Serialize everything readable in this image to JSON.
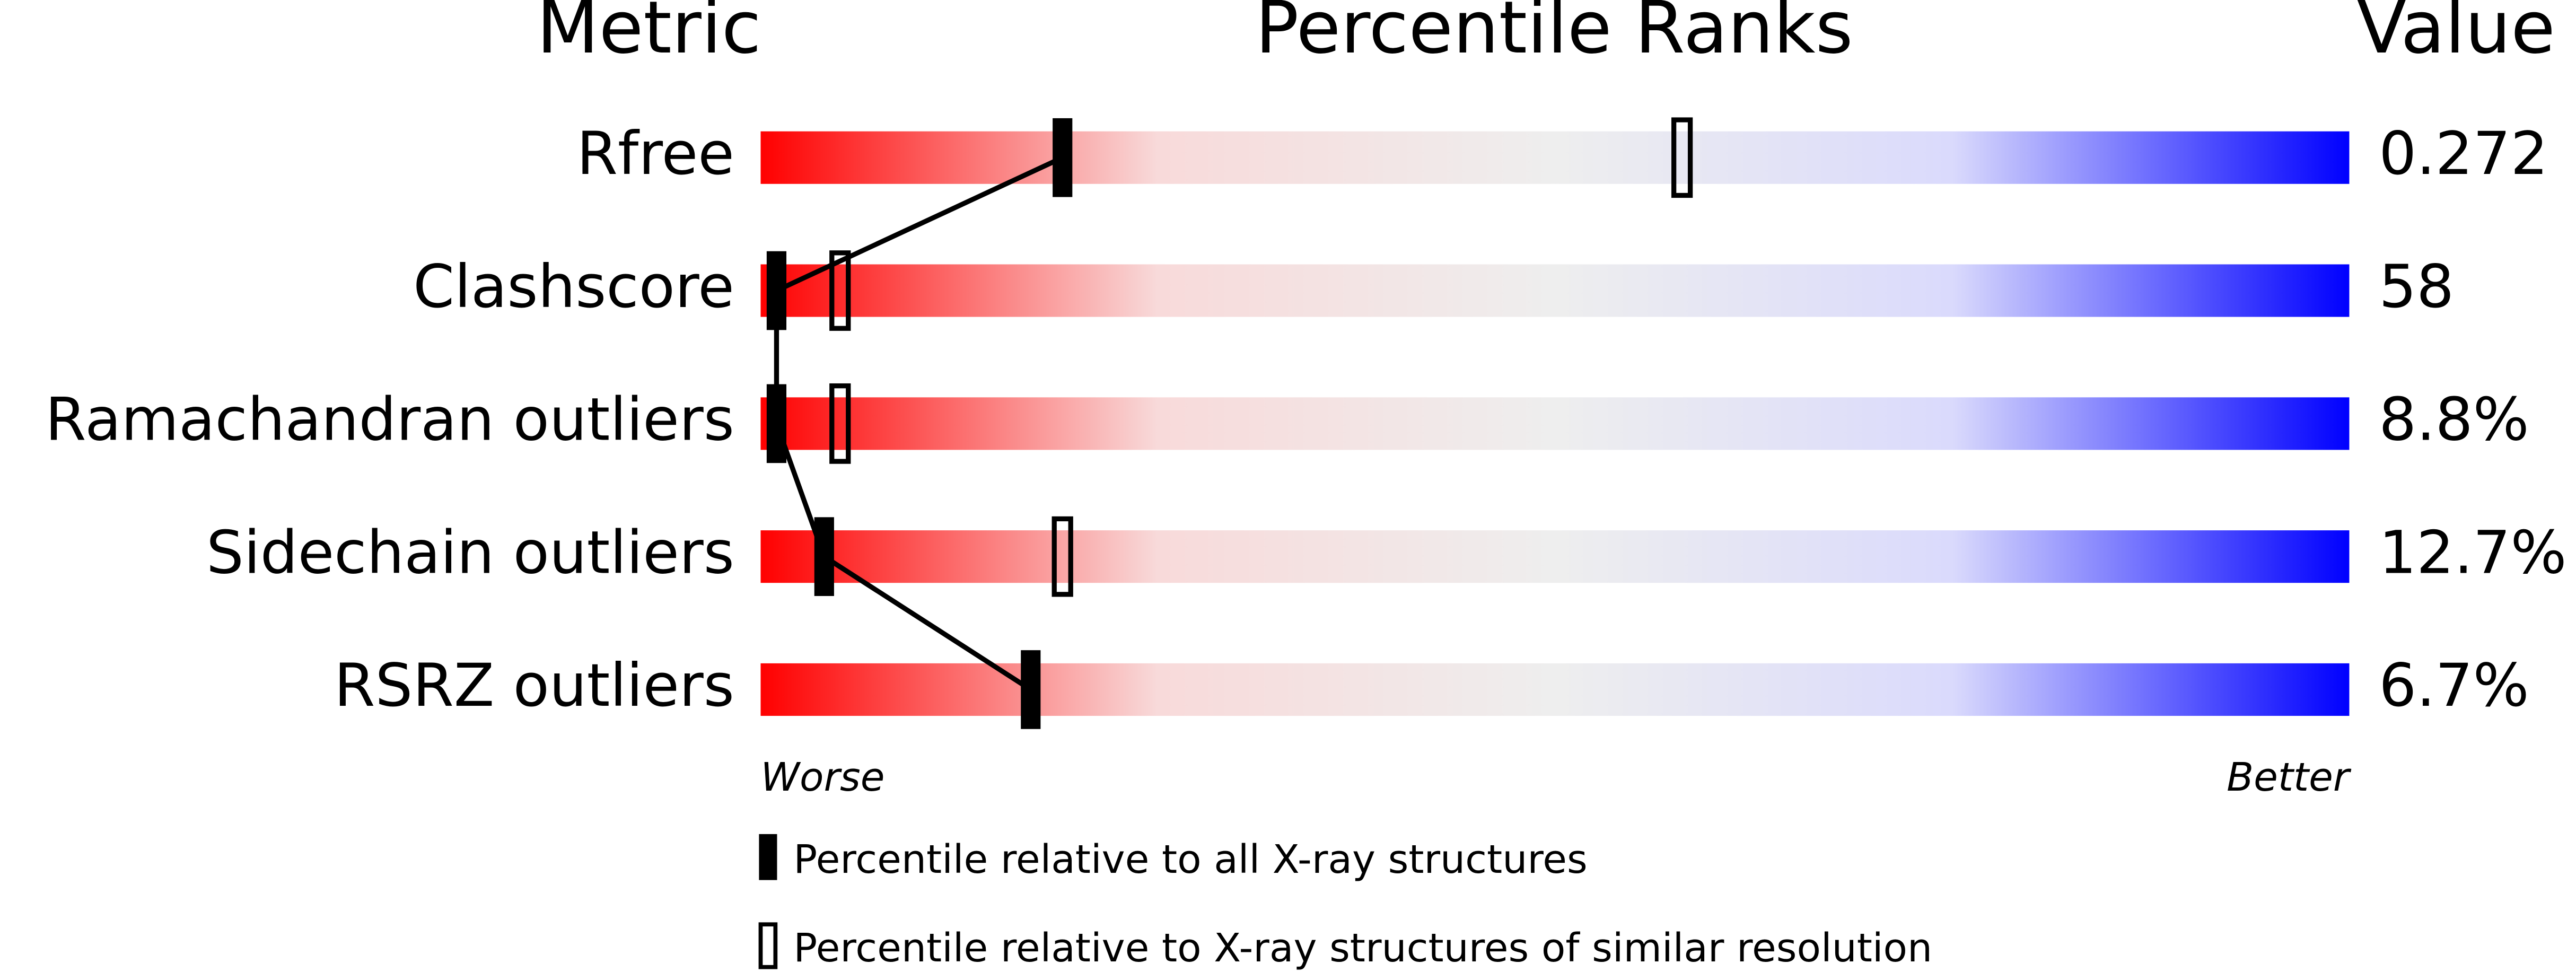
{
  "chart_data": {
    "type": "percentile",
    "columns": [
      "Metric",
      "Percentile Ranks",
      "Value"
    ],
    "categories": [
      "Rfree",
      "Clashscore",
      "Ramachandran outliers",
      "Sidechain outliers",
      "RSRZ outliers"
    ],
    "value_texts": [
      "0.272",
      "58",
      "8.8%",
      "12.7%",
      "6.7%"
    ],
    "xlim": [
      0,
      100
    ],
    "axis_labels": [
      "Worse",
      "Better"
    ],
    "colors": [
      "#ff0000",
      "#f8dada",
      "#eeeeee",
      "#dadafc",
      "#0000ff"
    ],
    "series": [
      {
        "name": "Percentile relative to all X-ray structures",
        "color": "#000000",
        "fill": "solid",
        "values": [
          19,
          1,
          1,
          4,
          17
        ]
      },
      {
        "name": "Percentile relative to X-ray structures of similar resolution",
        "color": "#000000",
        "fill": "open",
        "values": [
          58,
          5,
          5,
          19,
          null
        ]
      }
    ]
  }
}
